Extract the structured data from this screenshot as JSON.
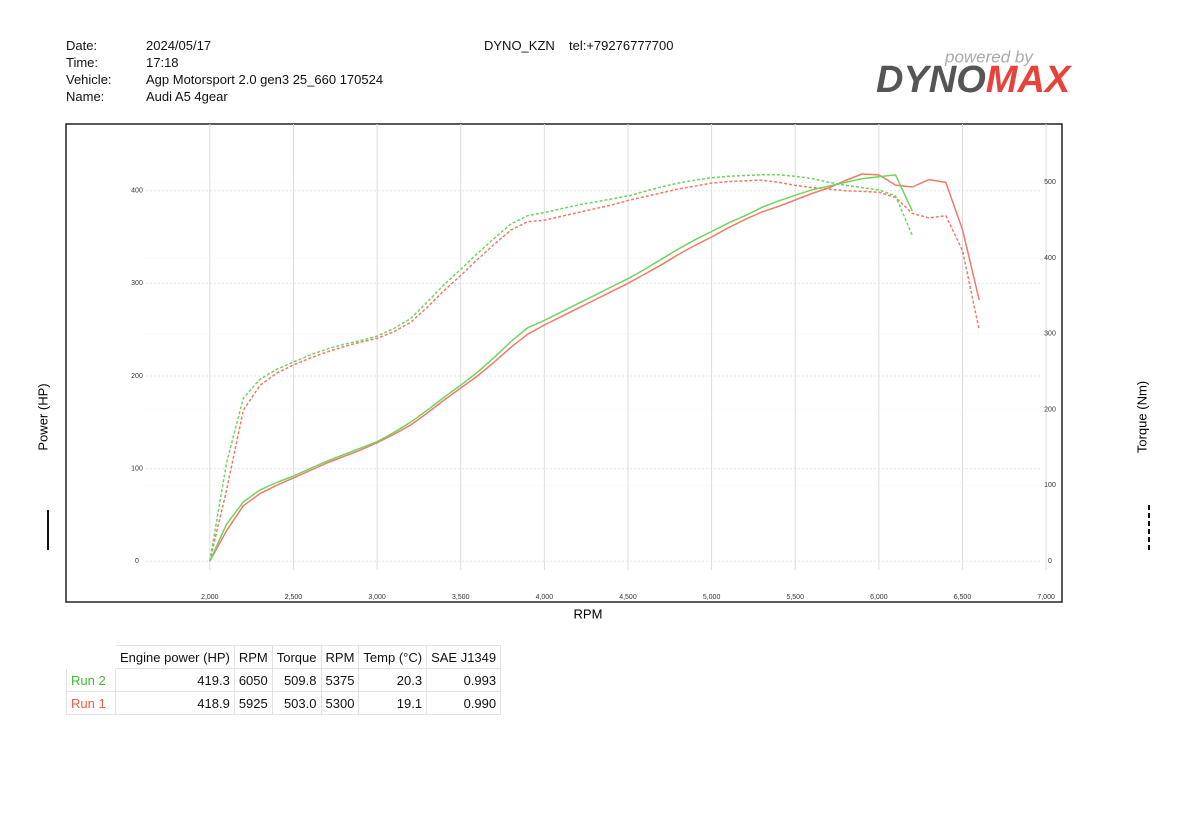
{
  "header": {
    "labels": [
      "Date:",
      "Time:",
      "Vehicle:",
      "Name:"
    ],
    "values": [
      "2024/05/17",
      "17:18",
      "Agp Motorsport 2.0 gen3 25_660 170524",
      "Audi A5 4gear"
    ],
    "shop": "DYNO_KZN",
    "phone": "tel:+79276777700",
    "logo_top": "powered by",
    "logo_a": "DYNO",
    "logo_b": "MAX"
  },
  "chart_data": {
    "type": "line",
    "x_label": "RPM",
    "y_label": "Power (HP)",
    "y2_label": "Torque (Nm)",
    "x": [
      2000,
      2100,
      2200,
      2300,
      2400,
      2500,
      2600,
      2700,
      2800,
      2900,
      3000,
      3100,
      3200,
      3300,
      3400,
      3500,
      3600,
      3700,
      3800,
      3900,
      4000,
      4100,
      4200,
      4300,
      4400,
      4500,
      4600,
      4700,
      4800,
      4900,
      5000,
      5100,
      5200,
      5300,
      5400,
      5500,
      5600,
      5700,
      5800,
      5900,
      6000,
      6100,
      6200,
      6300,
      6400,
      6500,
      6600
    ],
    "xlim": [
      1140,
      7095
    ],
    "xticks": [
      {
        "value": 2000,
        "label": "2,000"
      },
      {
        "value": 2500,
        "label": "2,500"
      },
      {
        "value": 3000,
        "label": "3,000"
      },
      {
        "value": 3500,
        "label": "3,500"
      },
      {
        "value": 4000,
        "label": "4,000"
      },
      {
        "value": 4500,
        "label": "4,500"
      },
      {
        "value": 5000,
        "label": "5,000"
      },
      {
        "value": 5500,
        "label": "5,500"
      },
      {
        "value": 6000,
        "label": "6,000"
      },
      {
        "value": 6500,
        "label": "6,500"
      },
      {
        "value": 7000,
        "label": "7,000"
      }
    ],
    "ylim": [
      -44,
      472
    ],
    "yticks": [
      0,
      100,
      200,
      300,
      400
    ],
    "y2lim": [
      -54,
      577
    ],
    "y2ticks": [
      0,
      100,
      200,
      300,
      400,
      500
    ],
    "grid": true,
    "series": [
      {
        "color": "#f07a68",
        "dash": false,
        "axis": "y",
        "values": [
          0,
          33,
          60,
          73,
          82,
          90,
          98,
          106,
          113,
          120,
          128,
          137,
          147,
          160,
          174,
          187,
          200,
          215,
          231,
          245,
          255,
          264,
          273,
          282,
          291,
          300,
          310,
          320,
          331,
          341,
          350,
          360,
          369,
          377,
          383,
          390,
          397,
          403,
          411,
          418,
          417,
          406,
          404,
          412,
          409,
          358,
          282
        ]
      },
      {
        "color": "#f07a68",
        "dash": true,
        "axis": "y2",
        "values": [
          0,
          94,
          199,
          232,
          248,
          259,
          268,
          276,
          283,
          289,
          294,
          303,
          315,
          335,
          357,
          377,
          398,
          418,
          437,
          448,
          450,
          455,
          460,
          465,
          470,
          476,
          481,
          486,
          491,
          495,
          499,
          501,
          502,
          503,
          500,
          496,
          493,
          491,
          489,
          488,
          487,
          480,
          459,
          453,
          456,
          410,
          305
        ]
      },
      {
        "color": "#6fd45e",
        "dash": false,
        "axis": "y",
        "values": [
          0,
          40,
          64,
          77,
          85,
          92,
          100,
          108,
          115,
          122,
          129,
          139,
          150,
          163,
          177,
          190,
          204,
          220,
          237,
          252,
          260,
          269,
          278,
          287,
          296,
          305,
          315,
          326,
          337,
          347,
          356,
          365,
          373,
          382,
          389,
          395,
          401,
          405,
          409,
          413,
          415,
          417,
          378,
          null,
          null,
          null,
          null
        ]
      },
      {
        "color": "#6fd45e",
        "dash": true,
        "axis": "y2",
        "values": [
          0,
          130,
          215,
          240,
          253,
          263,
          272,
          280,
          286,
          291,
          297,
          307,
          320,
          342,
          365,
          385,
          406,
          426,
          445,
          456,
          460,
          465,
          470,
          474,
          478,
          482,
          488,
          494,
          499,
          503,
          506,
          508,
          509,
          510,
          510,
          508,
          505,
          500,
          496,
          493,
          490,
          482,
          430,
          null,
          null,
          null,
          null
        ]
      }
    ]
  },
  "table": {
    "columns": [
      "",
      "Engine power (HP)",
      "RPM",
      "Torque",
      "RPM",
      "Temp (°C)",
      "SAE J1349"
    ],
    "rows": [
      [
        "Run 2",
        "419.3",
        "6050",
        "509.8",
        "5375",
        "20.3",
        "0.993"
      ],
      [
        "Run 1",
        "418.9",
        "5925",
        "503.0",
        "5300",
        "19.1",
        "0.990"
      ]
    ],
    "row_colors": [
      "#3cbf2c",
      "#f05a40"
    ]
  }
}
